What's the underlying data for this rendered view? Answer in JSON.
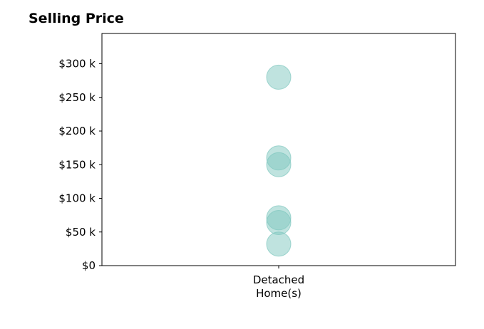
{
  "chart_data": {
    "type": "scatter",
    "title": "Selling Price",
    "categories": [
      "Detached\nHome(s)"
    ],
    "xlabel": "",
    "ylabel": "",
    "ylim": [
      0,
      345000
    ],
    "yticks": [
      0,
      50000,
      100000,
      150000,
      200000,
      250000,
      300000
    ],
    "ytick_labels": [
      "$0",
      "$50 k",
      "$100 k",
      "$150 k",
      "$200 k",
      "$250 k",
      "$300 k"
    ],
    "grid": false,
    "points": [
      {
        "category": "Detached\nHome(s)",
        "y": 280000
      },
      {
        "category": "Detached\nHome(s)",
        "y": 160000
      },
      {
        "category": "Detached\nHome(s)",
        "y": 150000
      },
      {
        "category": "Detached\nHome(s)",
        "y": 71000
      },
      {
        "category": "Detached\nHome(s)",
        "y": 64000
      },
      {
        "category": "Detached\nHome(s)",
        "y": 32000
      }
    ],
    "marker_color": "#7fc7bf"
  }
}
